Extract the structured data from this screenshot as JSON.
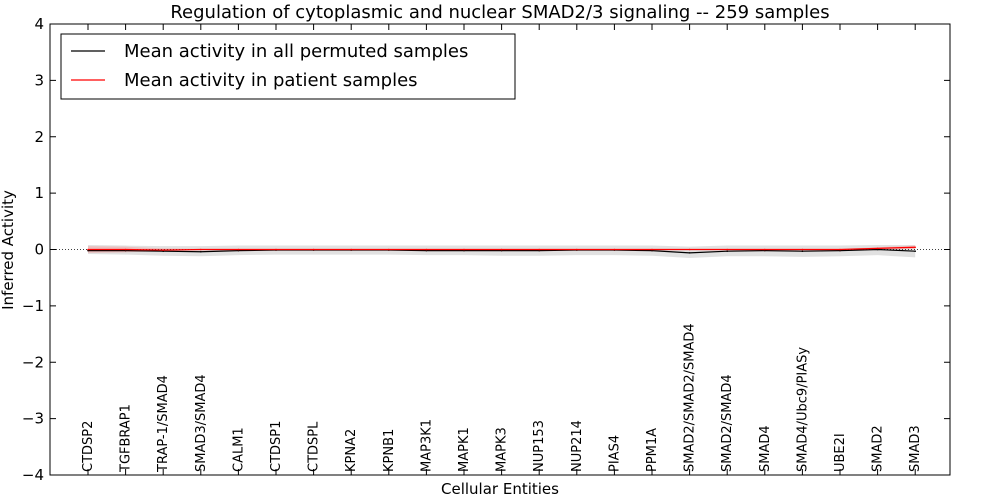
{
  "chart_data": {
    "type": "line",
    "title": "Regulation of cytoplasmic and nuclear SMAD2/3 signaling -- 259 samples",
    "xlabel": "Cellular Entities",
    "ylabel": "Inferred Activity",
    "ylim": [
      -4,
      4
    ],
    "yticks": [
      4,
      3,
      2,
      1,
      0,
      -1,
      -2,
      -3,
      -4
    ],
    "ytick_labels": [
      "4",
      "3",
      "2",
      "1",
      "0",
      "−1",
      "−2",
      "−3",
      "−4"
    ],
    "categories": [
      "CTDSP2",
      "TGFBRAP1",
      "TRAP-1/SMAD4",
      "SMAD3/SMAD4",
      "CALM1",
      "CTDSP1",
      "CTDSPL",
      "KPNA2",
      "KPNB1",
      "MAP3K1",
      "MAPK1",
      "MAPK3",
      "NUP153",
      "NUP214",
      "PIAS4",
      "PPM1A",
      "SMAD2/SMAD2/SMAD4",
      "SMAD2/SMAD4",
      "SMAD4",
      "SMAD4/Ubc9/PIASy",
      "UBE2I",
      "SMAD2",
      "SMAD3"
    ],
    "legend_position": "top-left",
    "series": [
      {
        "name": "Mean activity in all permuted samples",
        "color": "#000000",
        "values": [
          -0.02,
          -0.02,
          -0.03,
          -0.04,
          -0.02,
          -0.01,
          -0.01,
          -0.01,
          -0.01,
          -0.02,
          -0.02,
          -0.02,
          -0.02,
          -0.01,
          -0.01,
          -0.02,
          -0.06,
          -0.03,
          -0.02,
          -0.03,
          -0.02,
          0.0,
          -0.03
        ],
        "band_lower": [
          -0.08,
          -0.09,
          -0.11,
          -0.12,
          -0.1,
          -0.09,
          -0.09,
          -0.09,
          -0.09,
          -0.1,
          -0.1,
          -0.11,
          -0.11,
          -0.1,
          -0.1,
          -0.11,
          -0.15,
          -0.12,
          -0.12,
          -0.13,
          -0.12,
          -0.1,
          -0.14
        ],
        "band_upper": [
          0.08,
          0.07,
          0.06,
          0.06,
          0.07,
          0.07,
          0.07,
          0.07,
          0.07,
          0.07,
          0.07,
          0.07,
          0.07,
          0.07,
          0.07,
          0.07,
          0.05,
          0.07,
          0.07,
          0.07,
          0.07,
          0.08,
          0.08
        ],
        "band_color": "#aaaaaa"
      },
      {
        "name": "Mean activity in patient samples",
        "color": "#ff0000",
        "values": [
          0.0,
          0.0,
          -0.01,
          0.0,
          0.0,
          0.0,
          0.0,
          0.0,
          0.0,
          0.0,
          0.0,
          0.0,
          0.0,
          0.0,
          0.0,
          0.0,
          0.0,
          0.0,
          0.0,
          0.0,
          0.0,
          0.02,
          0.04
        ],
        "band_lower": [
          -0.06,
          -0.05,
          -0.03,
          -0.01,
          -0.01,
          -0.01,
          -0.01,
          -0.01,
          -0.01,
          -0.01,
          -0.01,
          -0.01,
          -0.01,
          -0.01,
          -0.01,
          -0.01,
          -0.01,
          -0.01,
          -0.01,
          -0.01,
          -0.01,
          0.0,
          0.01
        ],
        "band_upper": [
          0.06,
          0.05,
          0.02,
          0.01,
          0.01,
          0.01,
          0.01,
          0.01,
          0.01,
          0.01,
          0.01,
          0.01,
          0.01,
          0.01,
          0.01,
          0.01,
          0.01,
          0.01,
          0.01,
          0.01,
          0.01,
          0.04,
          0.07
        ],
        "band_color": "#ff8080"
      }
    ]
  }
}
